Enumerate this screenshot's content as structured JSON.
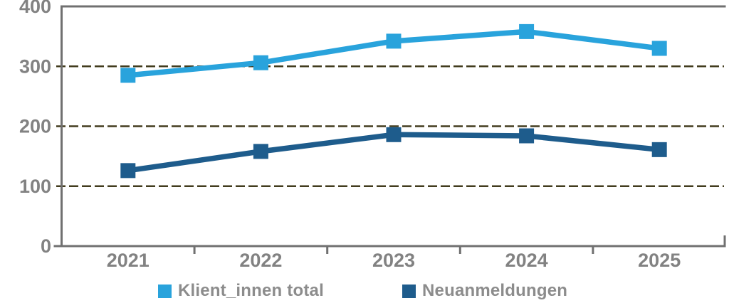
{
  "chart_data": {
    "type": "line",
    "title": "",
    "xlabel": "",
    "ylabel": "",
    "categories": [
      "2021",
      "2022",
      "2023",
      "2024",
      "2025"
    ],
    "series": [
      {
        "name": "Klient_innen total",
        "color": "#29A3DC",
        "values": [
          285,
          306,
          342,
          358,
          330
        ]
      },
      {
        "name": "Neuanmeldungen",
        "color": "#1E5C8C",
        "values": [
          126,
          158,
          186,
          184,
          161
        ]
      }
    ],
    "ylim": [
      0,
      400
    ],
    "ytick_interval": 100,
    "yticks": [
      "0",
      "100",
      "200",
      "300",
      "400"
    ],
    "grid": "horizontal-dashed",
    "marker": "square",
    "legend_position": "bottom",
    "colors": {
      "background": "#FFFFFF",
      "axis": "#707070",
      "gridline": "#423C1E",
      "tick_label": "#828282",
      "legend_text": "#8C8C8C"
    }
  }
}
